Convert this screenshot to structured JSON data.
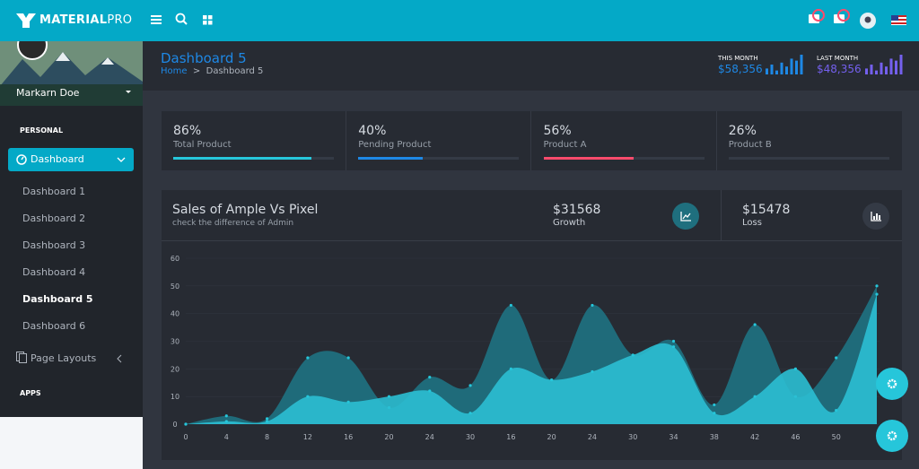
{
  "brand": {
    "strong": "MATERIAL",
    "light": "PRO"
  },
  "user": {
    "name": "Markarn Doe"
  },
  "sidebar": {
    "section": "PERSONAL",
    "active": "Dashboard",
    "items": [
      "Dashboard 1",
      "Dashboard 2",
      "Dashboard 3",
      "Dashboard 4",
      "Dashboard 5",
      "Dashboard 6"
    ],
    "more": "Page Layouts",
    "section2": "APPS"
  },
  "header": {
    "title": "Dashboard 5",
    "breadcrumb": [
      "Home",
      "Dashboard 5"
    ],
    "this_month": {
      "label": "THIS MONTH",
      "amount": "$58,356",
      "color": "#1e88e5",
      "bars": [
        3,
        5,
        2,
        6,
        4,
        8,
        7,
        10
      ]
    },
    "last_month": {
      "label": "LAST MONTH",
      "amount": "$48,356",
      "color": "#7460ee",
      "bars": [
        3,
        5,
        2,
        6,
        4,
        8,
        7,
        10
      ]
    }
  },
  "stats": [
    {
      "value": "86%",
      "name": "Total Product",
      "progress": 86,
      "color": "#26c6da"
    },
    {
      "value": "40%",
      "name": "Pending Product",
      "progress": 40,
      "color": "#1e88e5"
    },
    {
      "value": "56%",
      "name": "Product A",
      "progress": 56,
      "color": "#fc4b6c"
    },
    {
      "value": "26%",
      "name": "Product B",
      "progress": 26,
      "color": "#343a45"
    }
  ],
  "chart_data": {
    "type": "area",
    "title": "Sales of Ample Vs Pixel",
    "subtitle": "check the difference of Admin",
    "growth": {
      "amount": "$31568",
      "label": "Growth"
    },
    "loss": {
      "amount": "$15478",
      "label": "Loss"
    },
    "categories": [
      "0",
      "4",
      "8",
      "12",
      "16",
      "20",
      "24",
      "30",
      "16",
      "20",
      "24",
      "30",
      "34",
      "38",
      "42",
      "46",
      "50",
      null
    ],
    "series": [
      {
        "color": "#1f6f7e",
        "values": [
          0,
          3,
          2,
          24,
          24,
          6,
          17,
          14,
          43,
          16,
          43,
          25,
          30,
          7,
          36,
          10,
          24,
          50
        ]
      },
      {
        "color": "#2bbfd3",
        "values": [
          0,
          1,
          1,
          10,
          8,
          10,
          12,
          4,
          20,
          16,
          19,
          25,
          28,
          4,
          10,
          20,
          5,
          47
        ]
      }
    ],
    "ylim": [
      0,
      60
    ],
    "yticks": [
      0,
      10,
      20,
      30,
      40,
      50,
      60
    ],
    "grid": true
  }
}
